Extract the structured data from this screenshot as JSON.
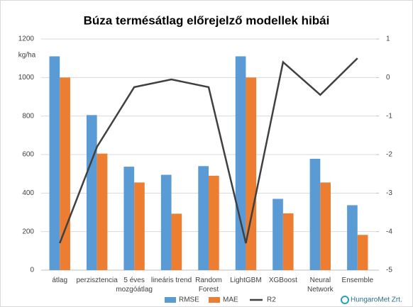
{
  "chart_data": {
    "type": "bar",
    "title": "Búza termésátlag előrejelző modellek hibái",
    "annotations": [
      "kg/ha",
      "HungaroMet Zrt."
    ],
    "categories": [
      "átlag",
      "perzisztencia",
      "5 éves\nmozgóátlag",
      "lineáris trend",
      "Random\nForest",
      "LightGBM",
      "XGBoost",
      "Neural\nNetwork",
      "Ensemble"
    ],
    "series": [
      {
        "name": "RMSE",
        "color": "#5b9bd5",
        "type": "bar",
        "values": [
          1110,
          805,
          537,
          495,
          540,
          1110,
          370,
          578,
          337
        ]
      },
      {
        "name": "MAE",
        "color": "#ed7d31",
        "type": "bar",
        "values": [
          1000,
          605,
          455,
          293,
          490,
          1000,
          295,
          455,
          183
        ]
      },
      {
        "name": "R2",
        "color": "#404040",
        "type": "line",
        "axis": "y2",
        "values": [
          -4.3,
          -1.8,
          -0.25,
          -0.05,
          -0.25,
          -4.3,
          0.4,
          -0.45,
          0.5
        ]
      }
    ],
    "ylim": [
      0,
      1200
    ],
    "yticks": [
      0,
      200,
      400,
      600,
      800,
      1000,
      1200
    ],
    "y2lim": [
      -5,
      1
    ],
    "y2ticks": [
      -5,
      -4,
      -3,
      -2,
      -1,
      0,
      1
    ],
    "grid": true,
    "legend": "bottom"
  }
}
